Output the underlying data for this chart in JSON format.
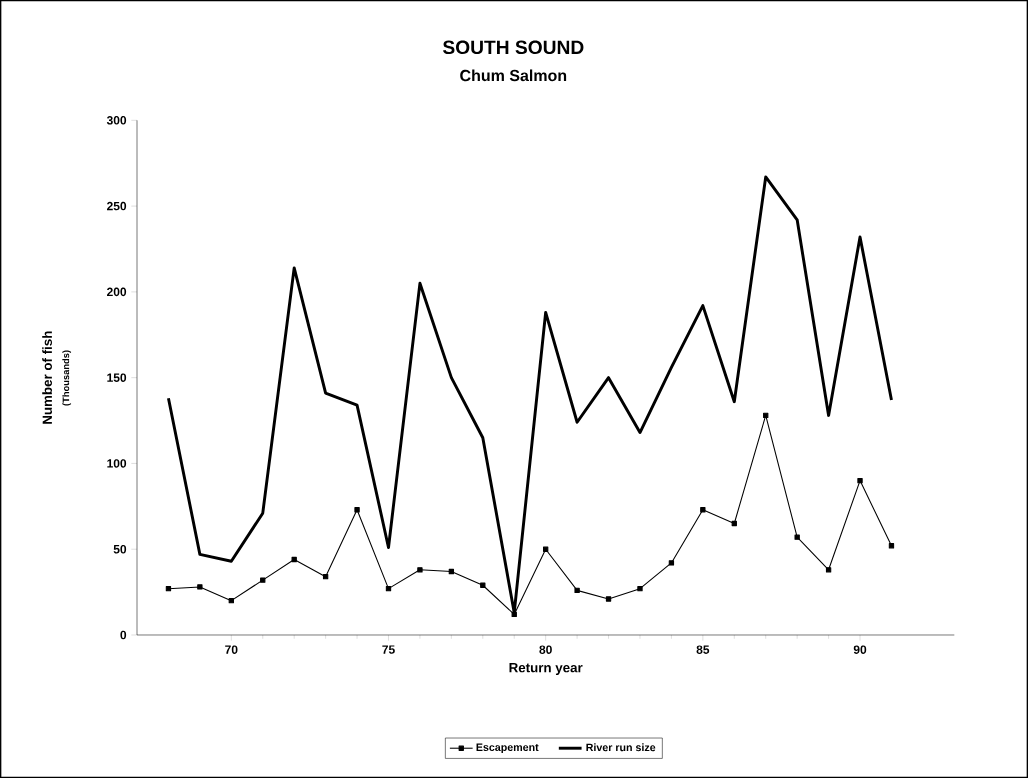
{
  "chart_data": {
    "type": "line",
    "title": "SOUTH SOUND",
    "subtitle": "Chum Salmon",
    "xlabel": "Return year",
    "ylabel": "Number of fish",
    "annotations": [
      "(Thousands)"
    ],
    "x": [
      68,
      69,
      70,
      71,
      72,
      73,
      74,
      75,
      76,
      77,
      78,
      79,
      80,
      81,
      82,
      83,
      84,
      85,
      86,
      87,
      88,
      89,
      90,
      91
    ],
    "series": [
      {
        "name": "Escapement",
        "color": "#000000",
        "marker": "square",
        "values": [
          27,
          28,
          20,
          32,
          44,
          34,
          73,
          27,
          38,
          37,
          29,
          12,
          50,
          26,
          21,
          27,
          42,
          73,
          65,
          128,
          57,
          38,
          90,
          52
        ]
      },
      {
        "name": "River run size",
        "color": "#000000",
        "marker": "none",
        "values": [
          138,
          47,
          43,
          71,
          214,
          141,
          134,
          51,
          205,
          150,
          115,
          13,
          188,
          124,
          150,
          118,
          156,
          192,
          136,
          267,
          242,
          128,
          232,
          137
        ]
      }
    ],
    "xlim": [
      67,
      93
    ],
    "ylim": [
      0,
      300
    ],
    "xticks": [
      70,
      75,
      80,
      85,
      90
    ],
    "yticks": [
      0,
      50,
      100,
      150,
      200,
      250,
      300
    ],
    "legend": "bottom",
    "grid": false
  }
}
